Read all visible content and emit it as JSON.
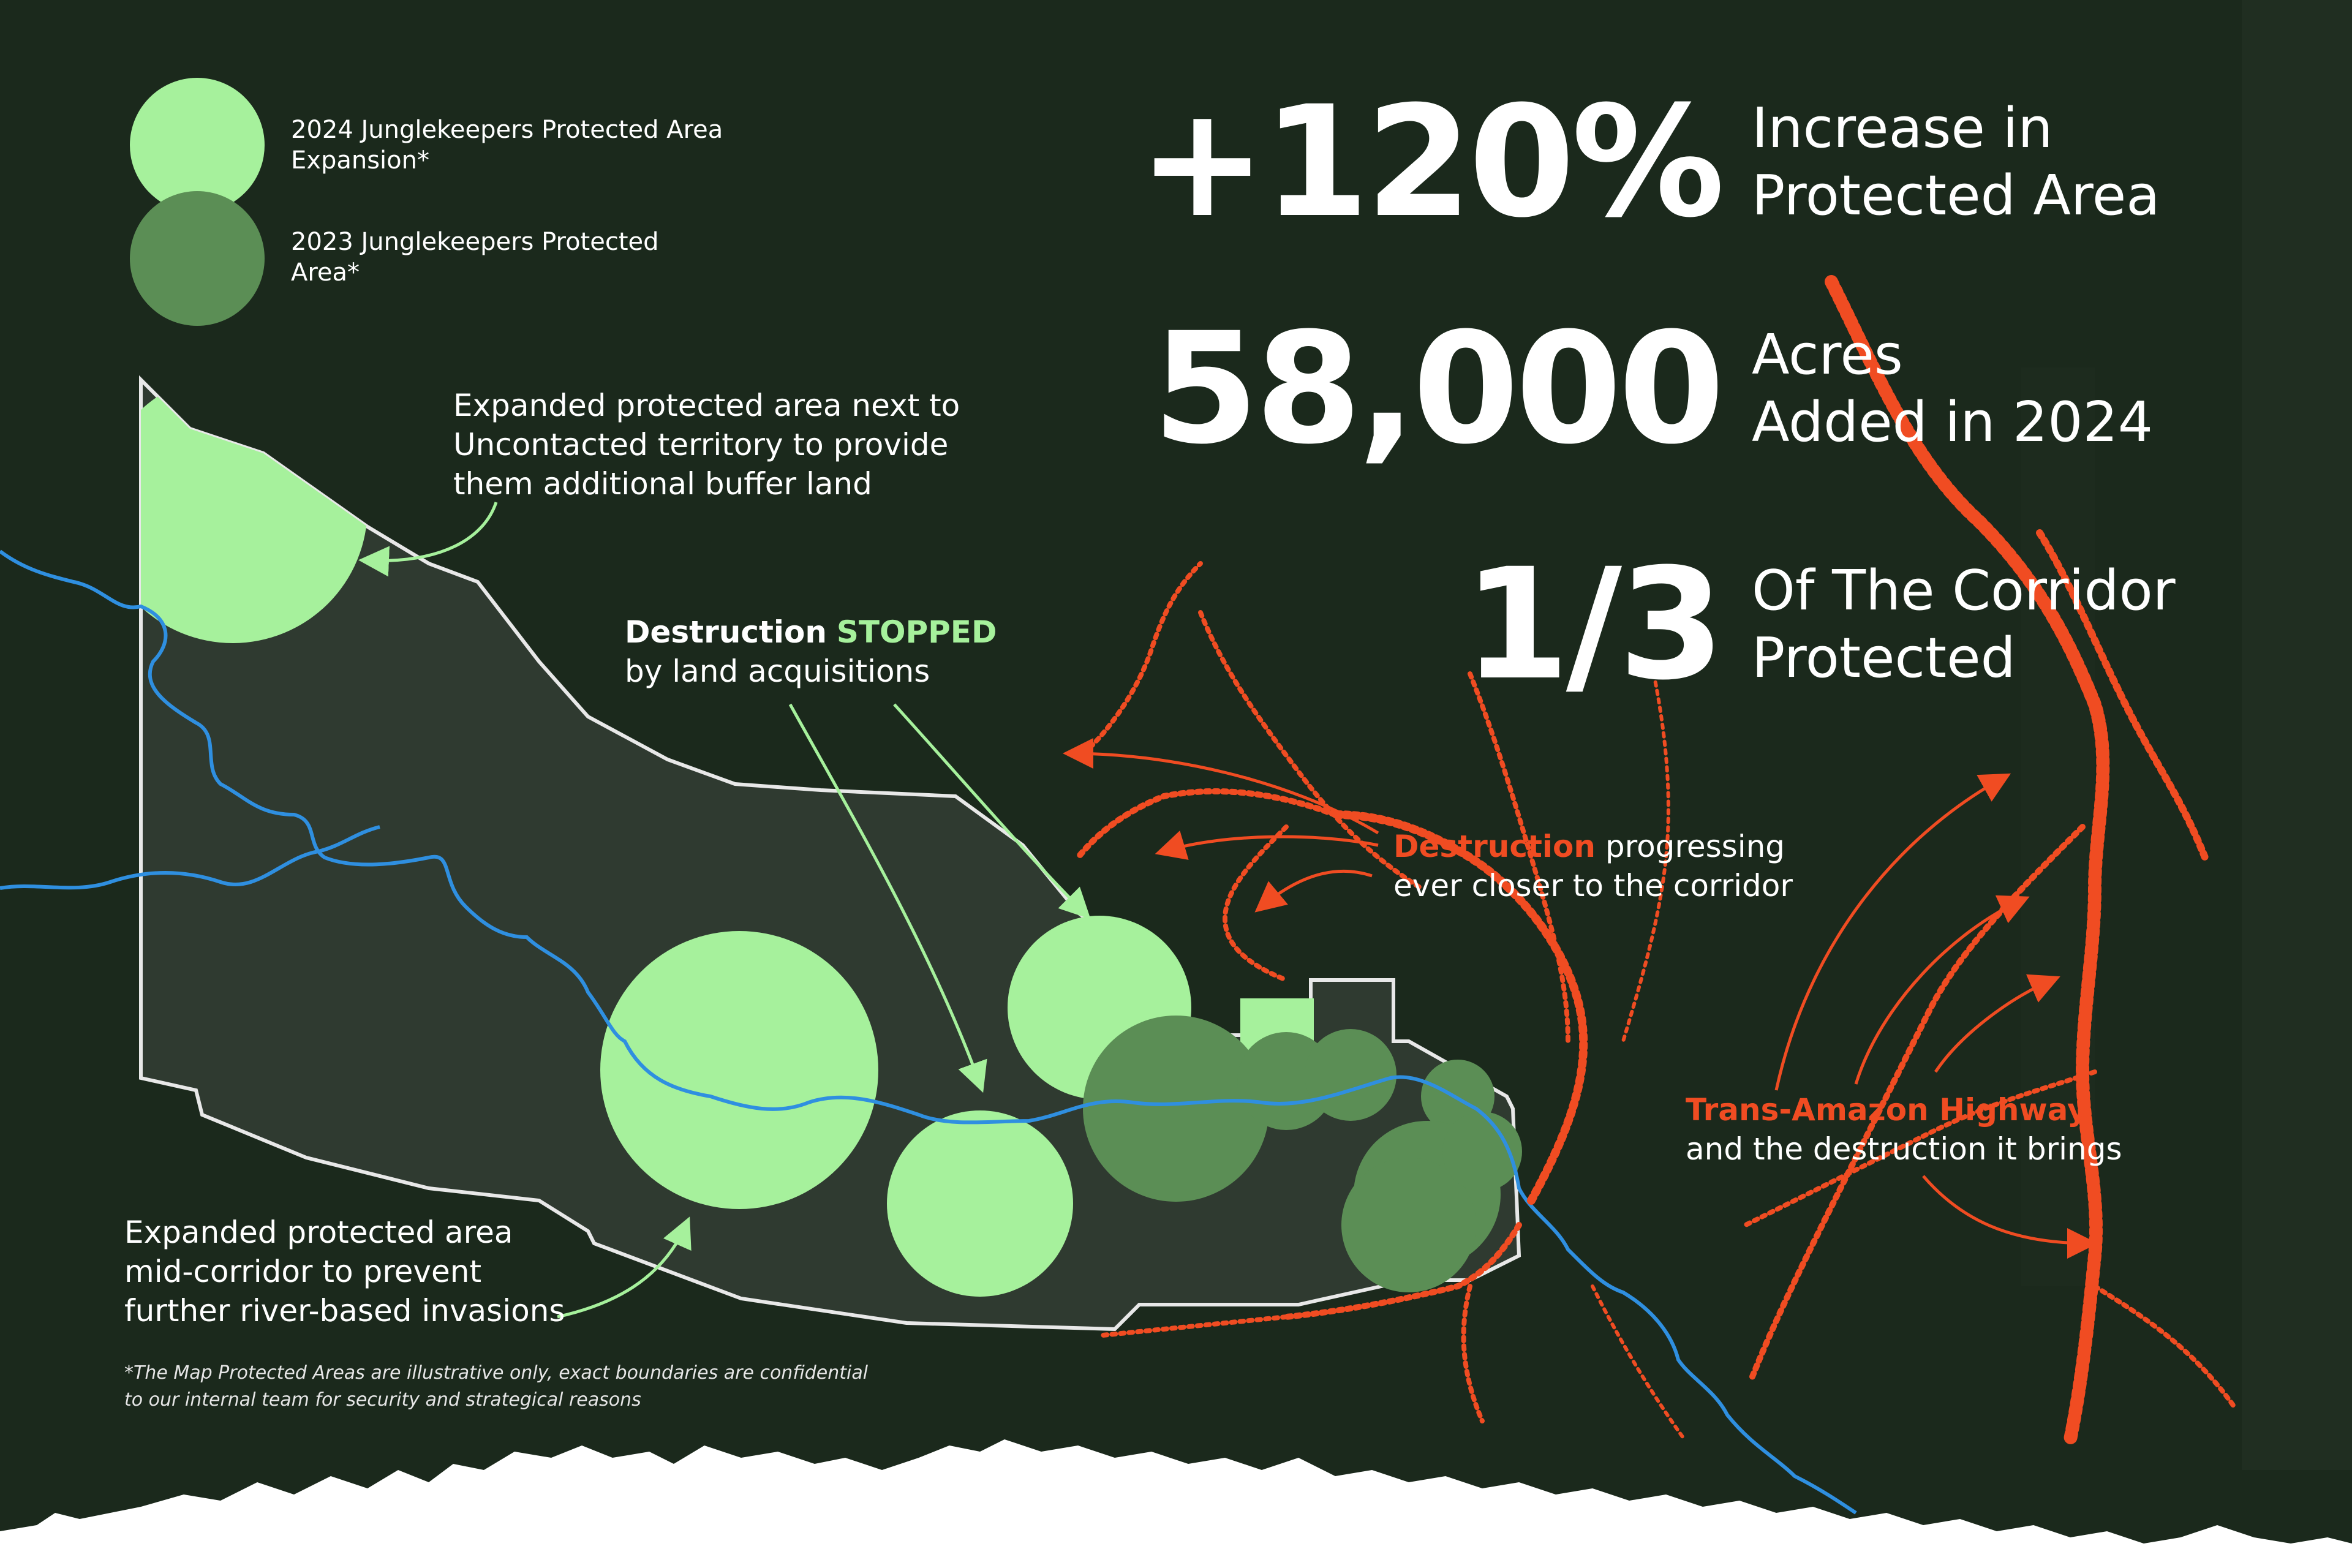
{
  "colors": {
    "background": "#1b291c",
    "expansion_2024": "#a6f19c",
    "protected_2023": "#5b8e55",
    "corridor_fill": "#2f3a30",
    "corridor_outline": "#e8e8e8",
    "river": "#2f8fe0",
    "destruction": "#f04c22",
    "accent_green": "#a6f19c"
  },
  "legend": {
    "expansion_2024": "2024 Junglekeepers Protected Area Expansion*",
    "protected_2023": "2023 Junglekeepers Protected Area*"
  },
  "stats": [
    {
      "number": "+120%",
      "label_line1": "Increase in",
      "label_line2": "Protected Area"
    },
    {
      "number": "58,000",
      "label_line1": "Acres",
      "label_line2": "Added in 2024"
    },
    {
      "number": "1/3",
      "label_line1": "Of The Corridor",
      "label_line2": "Protected"
    }
  ],
  "annotations": {
    "uncontacted": {
      "line1": "Expanded protected area next to",
      "line2": "Uncontacted territory to provide",
      "line3": "them additional buffer land"
    },
    "destruction_stopped": {
      "word": "Destruction",
      "highlight": "STOPPED",
      "line2": "by land acquisitions"
    },
    "destruction_progressing": {
      "highlight": "Destruction",
      "rest": "progressing",
      "line2": "ever closer to the corridor"
    },
    "highway": {
      "highlight": "Trans-Amazon Highway",
      "line2": "and the destruction it brings"
    },
    "mid_corridor": {
      "line1": "Expanded protected area",
      "line2": "mid-corridor to prevent",
      "line3": "further river-based invasions"
    }
  },
  "footnote": {
    "line1": "*The Map Protected Areas are illustrative only, exact boundaries are confidential",
    "line2": "to our internal team for security and strategical reasons"
  },
  "icons": {
    "arrows": "curved-arrow-icon",
    "treeline": "treeline-silhouette"
  }
}
